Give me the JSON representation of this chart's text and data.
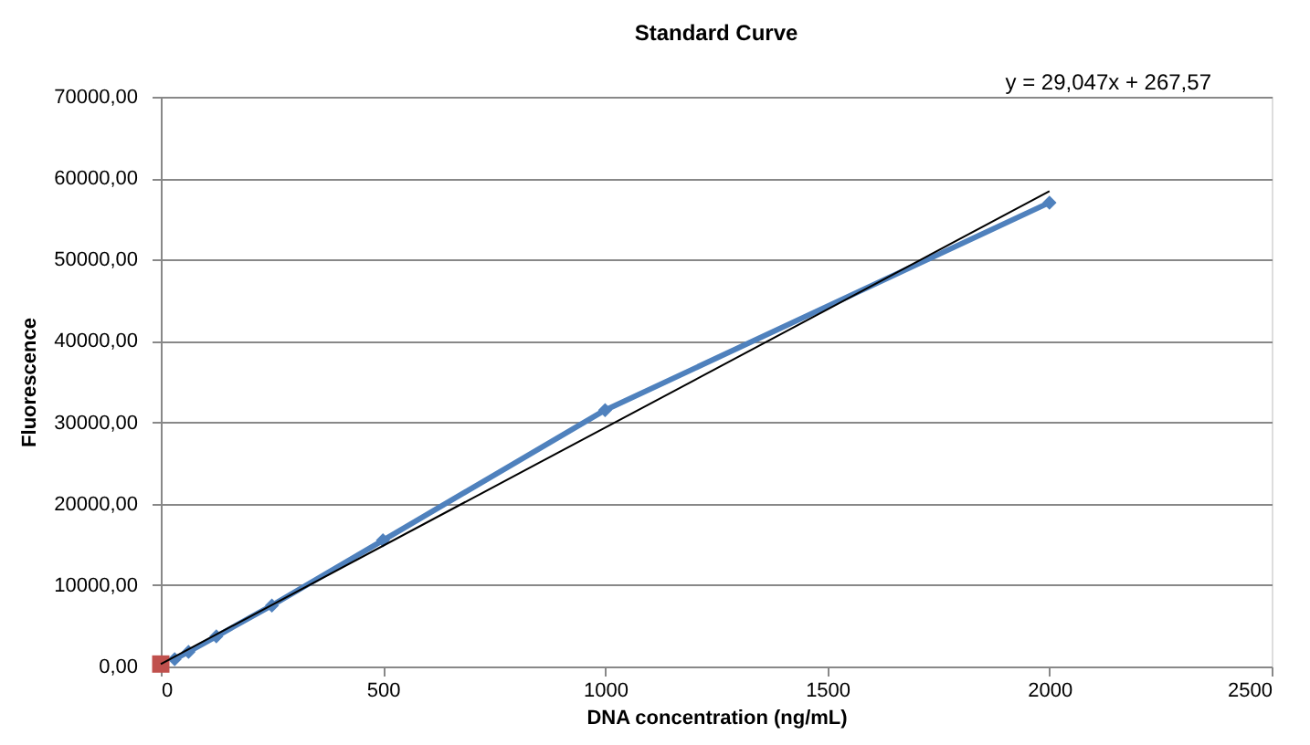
{
  "chart_data": {
    "type": "line",
    "title": "Standard Curve",
    "xlabel": "DNA concentration  (ng/mL)",
    "ylabel": "Fluorescence",
    "xlim": [
      0,
      2500
    ],
    "xticks": [
      0,
      500,
      1000,
      1500,
      2000,
      2500
    ],
    "ylim": [
      0,
      70000
    ],
    "yticks": [
      {
        "value": 0,
        "label": "0,00"
      },
      {
        "value": 10000,
        "label": "10000,00"
      },
      {
        "value": 20000,
        "label": "20000,00"
      },
      {
        "value": 30000,
        "label": "30000,00"
      },
      {
        "value": 40000,
        "label": "40000,00"
      },
      {
        "value": 50000,
        "label": "50000,00"
      },
      {
        "value": 60000,
        "label": "60000,00"
      },
      {
        "value": 70000,
        "label": "70000,00"
      }
    ],
    "grid": "y",
    "series": [
      {
        "color": "#4f81bd",
        "marker": "diamond",
        "x": [
          31.25,
          62.5,
          125,
          250,
          500,
          1000,
          2000
        ],
        "values": [
          900,
          1800,
          3700,
          7500,
          15500,
          31500,
          57000
        ]
      },
      {
        "type": "scatter",
        "color": "#c0504d",
        "marker": "square",
        "x": [
          0
        ],
        "values": [
          300
        ]
      },
      {
        "color": "#000000",
        "marker": "none",
        "x": [
          0,
          2000
        ],
        "values": [
          300,
          58400
        ]
      }
    ],
    "annotations": [
      "y = 29,047x + 267,57"
    ]
  }
}
